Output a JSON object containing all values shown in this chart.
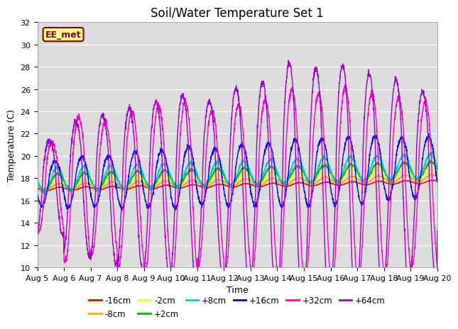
{
  "title": "Soil/Water Temperature Set 1",
  "xlabel": "Time",
  "ylabel": "Temperature (C)",
  "ylim": [
    10,
    32
  ],
  "xlim": [
    0,
    15
  ],
  "x_tick_labels": [
    "Aug 5",
    "Aug 6",
    "Aug 7",
    "Aug 8",
    "Aug 9",
    "Aug 10",
    "Aug 11",
    "Aug 12",
    "Aug 13",
    "Aug 14",
    "Aug 15",
    "Aug 16",
    "Aug 17",
    "Aug 18",
    "Aug 19",
    "Aug 20"
  ],
  "yticks": [
    10,
    12,
    14,
    16,
    18,
    20,
    22,
    24,
    26,
    28,
    30,
    32
  ],
  "annotation_text": "EE_met",
  "annotation_color": "#8B0000",
  "annotation_bg": "#FFFF99",
  "bg_color": "#DCDCDC",
  "series": [
    {
      "label": "-16cm",
      "color": "#FF0000",
      "base": 17.0,
      "amplitude": 0.15,
      "phase": 0.58,
      "trend": 0.045,
      "zorder": 5
    },
    {
      "label": "-8cm",
      "color": "#FFA500",
      "base": 17.2,
      "amplitude": 0.3,
      "phase": 0.56,
      "trend": 0.055,
      "zorder": 5
    },
    {
      "label": "-2cm",
      "color": "#FFFF00",
      "base": 17.4,
      "amplitude": 0.5,
      "phase": 0.54,
      "trend": 0.065,
      "zorder": 5
    },
    {
      "label": "+2cm",
      "color": "#00BB00",
      "base": 17.6,
      "amplitude": 0.75,
      "phase": 0.52,
      "trend": 0.075,
      "zorder": 5
    },
    {
      "label": "+8cm",
      "color": "#00CCCC",
      "base": 17.8,
      "amplitude": 1.1,
      "phase": 0.5,
      "trend": 0.085,
      "zorder": 5
    },
    {
      "label": "+16cm",
      "color": "#0000EE",
      "base": 17.5,
      "amplitude": 2.5,
      "phase": 0.42,
      "trend": 0.1,
      "zorder": 6
    },
    {
      "label": "+32cm",
      "color": "#FF00CC",
      "base": 17.5,
      "amplitude": 4.5,
      "phase": 0.3,
      "trend": 0.04,
      "zorder": 7
    },
    {
      "label": "+64cm",
      "color": "#9900CC",
      "base": 17.5,
      "amplitude": 5.5,
      "phase": 0.2,
      "trend": 0.04,
      "zorder": 8
    }
  ],
  "grid_color": "#FFFFFF",
  "title_fontsize": 12,
  "axis_label_fontsize": 9,
  "tick_fontsize": 8,
  "legend_fontsize": 8.5
}
